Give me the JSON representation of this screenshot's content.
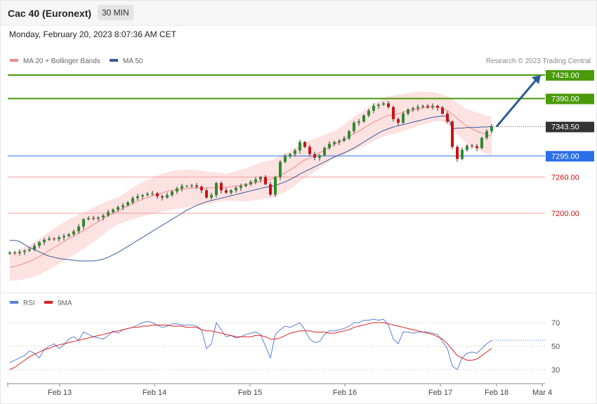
{
  "header": {
    "title": "Cac 40 (Euronext)",
    "timeframe": "30 MIN",
    "datetime": "Monday, February 20, 2023 8:07:36 AM CET"
  },
  "legend": {
    "ma20_label": "MA 20 + Bollinger Bands",
    "ma50_label": "MA 50",
    "credit": "Research © 2023 Trading Central",
    "rsi_label": "RSI",
    "rsi_ma_label": "9MA"
  },
  "colors": {
    "ma20": "#f08c8c",
    "ma50": "#3a5a9a",
    "bands": "#fde2e2",
    "bull": "#2e8b2e",
    "bear": "#cc1111",
    "resistance": "#4a9a0a",
    "pivot": "#2a6ee8",
    "support": "#f4a0a0",
    "current": "#333333",
    "arrow": "#2a5a9a",
    "rsi": "#5a7fd6",
    "rsi_ma": "#dd2222"
  },
  "chart_data": [
    {
      "type": "line",
      "title": "Cac 40 (Euronext) 30 MIN",
      "x_ticks": [
        "Feb 13",
        "Feb 14",
        "Feb 15",
        "Feb 16",
        "Feb 17",
        "Feb 18",
        "Mar 4"
      ],
      "ylim": [
        7080,
        7450
      ],
      "levels": [
        {
          "label": "7429.00",
          "value": 7429,
          "kind": "resistance"
        },
        {
          "label": "7390.00",
          "value": 7390,
          "kind": "resistance"
        },
        {
          "label": "7343.50",
          "value": 7343.5,
          "kind": "current"
        },
        {
          "label": "7295.00",
          "value": 7295,
          "kind": "pivot"
        },
        {
          "label": "7260.00",
          "value": 7260,
          "kind": "support"
        },
        {
          "label": "7200.00",
          "value": 7200,
          "kind": "support"
        }
      ],
      "close": [
        7135,
        7134,
        7136,
        7138,
        7140,
        7146,
        7152,
        7156,
        7158,
        7157,
        7160,
        7162,
        7165,
        7170,
        7178,
        7190,
        7192,
        7191,
        7193,
        7196,
        7202,
        7206,
        7210,
        7213,
        7218,
        7225,
        7228,
        7230,
        7232,
        7233,
        7228,
        7226,
        7230,
        7236,
        7241,
        7245,
        7245,
        7246,
        7244,
        7238,
        7226,
        7230,
        7250,
        7238,
        7234,
        7238,
        7242,
        7245,
        7248,
        7252,
        7256,
        7260,
        7248,
        7231,
        7260,
        7285,
        7294,
        7298,
        7304,
        7318,
        7310,
        7298,
        7292,
        7296,
        7308,
        7315,
        7318,
        7320,
        7324,
        7336,
        7350,
        7352,
        7362,
        7370,
        7378,
        7380,
        7382,
        7376,
        7356,
        7350,
        7365,
        7372,
        7374,
        7376,
        7378,
        7376,
        7378,
        7375,
        7365,
        7352,
        7310,
        7290,
        7305,
        7312,
        7311,
        7308,
        7325,
        7336,
        7343.5
      ],
      "ma20": [
        7110,
        7112,
        7114,
        7117,
        7120,
        7124,
        7128,
        7133,
        7138,
        7143,
        7148,
        7153,
        7158,
        7162,
        7167,
        7171,
        7176,
        7181,
        7186,
        7191,
        7196,
        7200,
        7204,
        7208,
        7212,
        7216,
        7220,
        7223,
        7226,
        7229,
        7232,
        7234,
        7236,
        7238,
        7239,
        7240,
        7241,
        7242,
        7242,
        7242,
        7242,
        7242,
        7243,
        7243,
        7243,
        7244,
        7245,
        7246,
        7247,
        7249,
        7251,
        7253,
        7255,
        7256,
        7259,
        7263,
        7267,
        7272,
        7277,
        7283,
        7288,
        7292,
        7296,
        7300,
        7305,
        7310,
        7314,
        7318,
        7322,
        7327,
        7332,
        7336,
        7341,
        7346,
        7351,
        7355,
        7359,
        7362,
        7363,
        7365,
        7367,
        7369,
        7371,
        7373,
        7374,
        7375,
        7376,
        7376,
        7374,
        7370,
        7364,
        7357,
        7350,
        7344,
        7340,
        7336,
        7333,
        7330,
        7328
      ],
      "ma50": [
        7155,
        7155,
        7153,
        7148,
        7143,
        7140,
        7136,
        7132,
        7129,
        7127,
        7125,
        7124,
        7123,
        7122,
        7121,
        7121,
        7121,
        7121,
        7122,
        7124,
        7127,
        7131,
        7135,
        7140,
        7145,
        7150,
        7155,
        7160,
        7165,
        7170,
        7175,
        7180,
        7185,
        7190,
        7195,
        7200,
        7205,
        7209,
        7213,
        7216,
        7219,
        7221,
        7223,
        7225,
        7227,
        7229,
        7231,
        7233,
        7235,
        7237,
        7239,
        7241,
        7243,
        7244,
        7246,
        7249,
        7252,
        7256,
        7260,
        7265,
        7269,
        7273,
        7277,
        7281,
        7285,
        7289,
        7293,
        7297,
        7300,
        7304,
        7308,
        7313,
        7318,
        7323,
        7328,
        7333,
        7337,
        7340,
        7343,
        7345,
        7347,
        7349,
        7351,
        7353,
        7355,
        7357,
        7359,
        7360,
        7361,
        7361,
        7340,
        7341,
        7341,
        7342,
        7342,
        7342,
        7343,
        7343,
        7344
      ]
    },
    {
      "type": "line",
      "title": "RSI",
      "ylim": [
        20,
        80
      ],
      "y_ticks": [
        70,
        50,
        30
      ],
      "rsi": [
        36,
        38,
        40,
        42,
        46,
        44,
        40,
        47,
        50,
        52,
        48,
        51,
        56,
        58,
        55,
        62,
        60,
        58,
        57,
        56,
        59,
        63,
        61,
        64,
        65,
        66,
        68,
        70,
        71,
        70,
        68,
        66,
        67,
        69,
        69,
        68,
        68,
        68,
        67,
        64,
        48,
        52,
        70,
        64,
        58,
        59,
        57,
        58,
        60,
        61,
        62,
        60,
        50,
        40,
        60,
        64,
        67,
        66,
        68,
        70,
        64,
        56,
        53,
        54,
        60,
        63,
        63,
        64,
        65,
        67,
        70,
        70,
        72,
        72,
        73,
        72,
        73,
        68,
        56,
        52,
        62,
        62,
        61,
        62,
        62,
        62,
        61,
        60,
        54,
        48,
        33,
        30,
        40,
        44,
        45,
        44,
        48,
        52,
        55
      ],
      "rsi_ma": [
        30,
        32,
        35,
        38,
        41,
        43,
        45,
        47,
        48,
        50,
        51,
        52,
        53,
        54,
        55,
        56,
        57,
        58,
        59,
        60,
        61,
        62,
        63,
        64,
        65,
        66,
        66,
        67,
        67,
        68,
        68,
        68,
        68,
        67,
        67,
        67,
        66,
        66,
        66,
        64,
        63,
        63,
        62,
        61,
        60,
        59,
        58,
        58,
        58,
        58,
        59,
        59,
        58,
        56,
        56,
        57,
        59,
        61,
        62,
        63,
        63,
        63,
        62,
        62,
        62,
        61,
        61,
        62,
        63,
        64,
        66,
        67,
        68,
        69,
        70,
        70,
        70,
        69,
        68,
        67,
        66,
        65,
        64,
        63,
        62,
        61,
        60,
        58,
        56,
        52,
        47,
        42,
        40,
        38,
        38,
        39,
        42,
        45,
        48
      ]
    }
  ]
}
